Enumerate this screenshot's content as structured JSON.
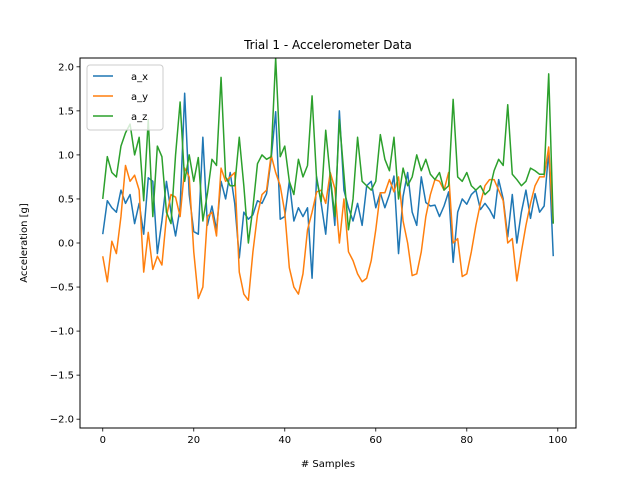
{
  "chart_data": {
    "type": "line",
    "title": "Trial 1 - Accelerometer Data",
    "xlabel": "# Samples",
    "ylabel": "Acceleration [g]",
    "xlim": [
      -5,
      104
    ],
    "ylim": [
      -2.1,
      2.1
    ],
    "xticks": [
      0,
      20,
      40,
      60,
      80,
      100
    ],
    "yticks": [
      -2.0,
      -1.5,
      -1.0,
      -0.5,
      0.0,
      0.5,
      1.0,
      1.5,
      2.0
    ],
    "ytick_labels": [
      "−2.0",
      "−1.5",
      "−1.0",
      "−0.5",
      "0.0",
      "0.5",
      "1.0",
      "1.5",
      "2.0"
    ],
    "xtick_labels": [
      "0",
      "20",
      "40",
      "60",
      "80",
      "100"
    ],
    "grid": false,
    "legend_position": "top-left",
    "series": [
      {
        "name": "a_x",
        "color": "#1f77b4",
        "values": [
          0.1,
          0.48,
          0.4,
          0.35,
          0.6,
          0.45,
          0.55,
          0.22,
          0.45,
          0.1,
          0.74,
          0.7,
          -0.12,
          0.25,
          0.7,
          0.35,
          0.08,
          0.4,
          1.7,
          0.55,
          0.13,
          0.1,
          1.2,
          0.2,
          0.42,
          0.15,
          0.7,
          0.5,
          0.8,
          0.45,
          -0.17,
          0.35,
          0.27,
          0.32,
          0.48,
          0.45,
          0.56,
          0.95,
          1.49,
          0.27,
          0.3,
          0.7,
          0.25,
          0.4,
          0.3,
          0.4,
          -0.4,
          0.75,
          0.45,
          0.1,
          0.75,
          0.2,
          1.5,
          0.6,
          0.4,
          0.25,
          0.45,
          0.2,
          0.65,
          0.7,
          0.4,
          0.57,
          0.4,
          0.55,
          0.76,
          -0.12,
          0.53,
          0.8,
          0.35,
          0.2,
          0.75,
          0.46,
          0.42,
          0.43,
          0.3,
          0.42,
          0.58,
          -0.22,
          0.35,
          0.5,
          0.44,
          0.55,
          0.6,
          0.38,
          0.45,
          0.38,
          0.28,
          0.72,
          0.5,
          0.07,
          0.55,
          0.0,
          0.35,
          0.6,
          0.28,
          0.56,
          0.35,
          0.42,
          1.05,
          -0.15
        ]
      },
      {
        "name": "a_y",
        "color": "#ff7f0e",
        "values": [
          -0.15,
          -0.44,
          0.02,
          -0.12,
          0.3,
          0.88,
          0.7,
          0.77,
          0.6,
          -0.33,
          0.12,
          -0.3,
          -0.15,
          -0.25,
          0.3,
          0.55,
          0.52,
          0.3,
          0.85,
          0.75,
          -0.1,
          -0.63,
          -0.5,
          0.3,
          0.35,
          0.08,
          0.85,
          0.7,
          0.75,
          0.8,
          -0.33,
          -0.58,
          -0.65,
          -0.1,
          0.32,
          0.55,
          0.6,
          1.0,
          0.8,
          0.65,
          0.35,
          -0.28,
          -0.5,
          -0.58,
          -0.35,
          0.15,
          0.35,
          0.58,
          0.6,
          0.45,
          0.8,
          0.62,
          0.0,
          0.5,
          -0.1,
          -0.2,
          -0.35,
          -0.44,
          -0.4,
          -0.2,
          0.15,
          0.57,
          0.57,
          0.72,
          0.58,
          0.75,
          0.25,
          0.0,
          -0.37,
          -0.35,
          -0.1,
          0.3,
          0.55,
          0.72,
          0.7,
          0.6,
          0.8,
          0.0,
          0.05,
          -0.38,
          -0.35,
          -0.1,
          0.2,
          0.45,
          0.65,
          0.72,
          0.72,
          0.6,
          0.48,
          0.0,
          0.05,
          -0.43,
          -0.1,
          0.2,
          0.45,
          0.65,
          0.75,
          0.75,
          1.09,
          0.22
        ]
      },
      {
        "name": "a_z",
        "color": "#2ca02c",
        "values": [
          0.5,
          0.98,
          0.8,
          0.75,
          1.1,
          1.25,
          1.35,
          1.0,
          1.2,
          0.48,
          1.4,
          0.3,
          1.1,
          0.98,
          0.35,
          0.22,
          1.0,
          1.6,
          0.7,
          1.0,
          0.7,
          0.97,
          0.25,
          0.56,
          0.95,
          0.88,
          1.88,
          0.75,
          0.65,
          0.65,
          1.2,
          0.65,
          0.0,
          0.4,
          0.9,
          1.0,
          0.95,
          0.98,
          2.1,
          0.98,
          1.1,
          0.7,
          0.55,
          0.95,
          0.75,
          0.88,
          1.67,
          0.72,
          0.47,
          1.28,
          0.75,
          0.3,
          1.4,
          0.78,
          0.15,
          0.5,
          1.2,
          0.7,
          0.65,
          0.6,
          0.7,
          1.23,
          0.95,
          0.82,
          1.2,
          0.5,
          0.85,
          0.65,
          0.75,
          1.0,
          0.82,
          0.95,
          0.78,
          0.72,
          0.8,
          0.6,
          0.65,
          1.63,
          0.75,
          0.7,
          0.8,
          0.65,
          0.6,
          0.65,
          0.55,
          0.6,
          0.82,
          0.95,
          0.88,
          1.57,
          0.78,
          0.72,
          0.65,
          0.7,
          0.85,
          0.82,
          0.78,
          0.78,
          1.92,
          0.22
        ]
      }
    ]
  }
}
